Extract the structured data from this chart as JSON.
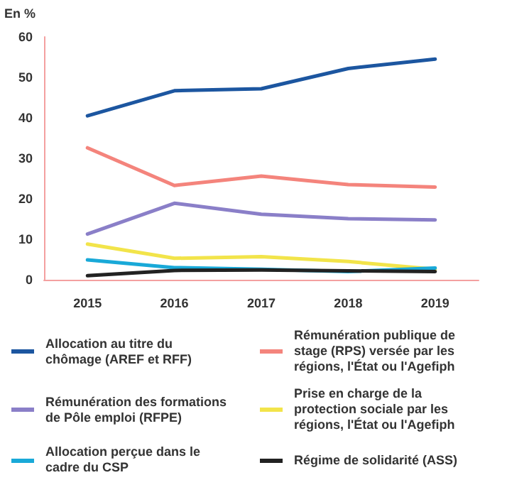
{
  "chart_data": {
    "type": "line",
    "ylabel": "En %",
    "categories": [
      "2015",
      "2016",
      "2017",
      "2018",
      "2019"
    ],
    "series": [
      {
        "name": "Allocation au titre du chômage (AREF et RFF)",
        "color": "#1c56a0",
        "values": [
          40.5,
          46.7,
          47.2,
          52.2,
          54.5
        ]
      },
      {
        "name": "Rémunération publique de stage (RPS) versée par les régions, l'État ou l'Agefiph",
        "color": "#f4847c",
        "values": [
          32.6,
          23.3,
          25.6,
          23.5,
          22.9
        ]
      },
      {
        "name": "Rémunération des formations de Pôle emploi (RFPE)",
        "color": "#8a7fc8",
        "values": [
          11.3,
          18.9,
          16.2,
          15.1,
          14.8
        ]
      },
      {
        "name": "Prise en charge de la protection sociale par les régions, l'État ou l'Agefiph",
        "color": "#f2e44a",
        "values": [
          8.8,
          5.3,
          5.7,
          4.5,
          2.6
        ]
      },
      {
        "name": "Allocation perçue dans le cadre du CSP",
        "color": "#19a9d8",
        "values": [
          4.9,
          3.0,
          2.6,
          2.0,
          2.9
        ]
      },
      {
        "name": "Régime de solidarité (ASS)",
        "color": "#222222",
        "values": [
          1.0,
          2.3,
          2.4,
          2.2,
          2.0
        ]
      }
    ],
    "ylim": [
      0,
      60
    ],
    "yticks": [
      0,
      10,
      20,
      30,
      40,
      50,
      60
    ],
    "grid": false,
    "legend": "bottom",
    "marker": "none",
    "line_style": "solid"
  }
}
